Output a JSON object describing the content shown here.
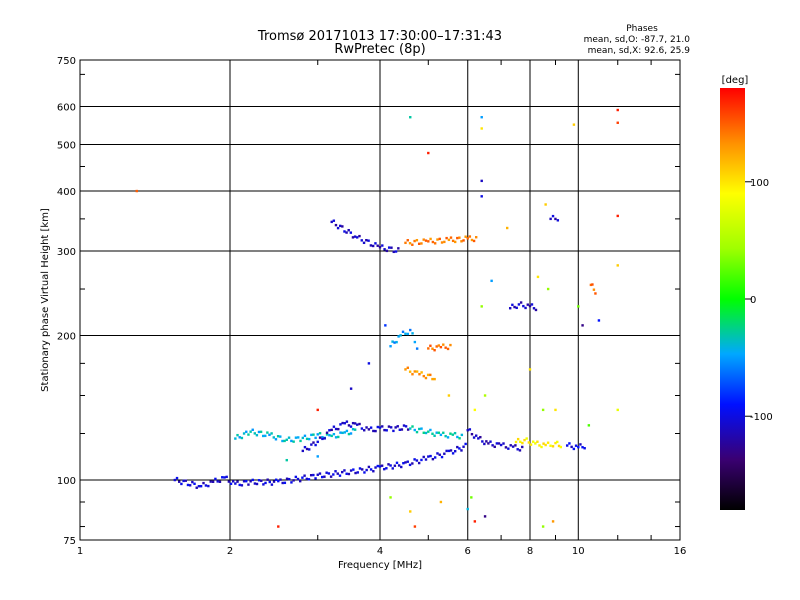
{
  "chart_data": {
    "type": "scatter",
    "title": "Tromsø 20171013 17:30:00–17:31:43",
    "subtitle": "RwPretec (8p)",
    "stats_header": "Phases",
    "stats_line1": "mean, sd,O: -87.7, 21.0",
    "stats_line2": "mean, sd,X: 92.6, 25.9",
    "xlabel": "Frequency [MHz]",
    "ylabel": "Stationary phase Virtual Height [km]",
    "xscale": "log",
    "yscale": "log",
    "xlim": [
      1,
      16
    ],
    "ylim": [
      75,
      750
    ],
    "xticks": [
      1,
      2,
      4,
      6,
      8,
      10,
      16
    ],
    "xtick_labels": [
      "1",
      "2",
      "4",
      "6",
      "8",
      "10",
      "16"
    ],
    "yticks": [
      75,
      100,
      200,
      300,
      400,
      500,
      600,
      750
    ],
    "ytick_labels": [
      "75",
      "100",
      "200",
      "300",
      "400",
      "500",
      "600",
      "750"
    ],
    "grid": true,
    "colorbar": {
      "label": "[deg]",
      "range": [
        -180,
        180
      ],
      "ticks": [
        -100,
        0,
        100
      ],
      "tick_labels": [
        "-100",
        "0",
        "100"
      ]
    },
    "traces": [
      {
        "x": [
          1.55,
          1.75,
          1.85,
          1.95,
          2.05,
          2.2,
          2.5,
          3.0,
          3.5,
          4.0,
          4.5,
          5.0,
          5.5,
          6.0
        ],
        "y": [
          100,
          97,
          99,
          101,
          98,
          99,
          99,
          102,
          104,
          106,
          108,
          111,
          114,
          118
        ],
        "phase": -105
      },
      {
        "x": [
          2.05,
          2.2,
          2.4,
          2.6,
          2.8,
          3.0,
          3.2,
          3.4,
          3.6
        ],
        "y": [
          122,
          126,
          124,
          121,
          122,
          124,
          123,
          125,
          127
        ],
        "phase": -40
      },
      {
        "x": [
          2.8,
          3.0,
          3.2,
          3.4,
          3.6,
          3.8,
          4.0,
          4.3,
          4.6
        ],
        "y": [
          115,
          120,
          127,
          131,
          130,
          127,
          128,
          128,
          129
        ],
        "phase": -110
      },
      {
        "x": [
          4.6,
          5.0,
          5.3,
          5.6,
          5.9
        ],
        "y": [
          128,
          126,
          124,
          124,
          123
        ],
        "phase": -35
      },
      {
        "x": [
          6.0,
          6.3,
          6.6,
          7.0,
          7.4,
          7.8
        ],
        "y": [
          127,
          122,
          119,
          118,
          117,
          116
        ],
        "phase": -112
      },
      {
        "x": [
          7.5,
          7.8,
          8.2,
          8.6,
          9.0,
          9.3
        ],
        "y": [
          120,
          121,
          119,
          118,
          119,
          118
        ],
        "phase": 95
      },
      {
        "x": [
          9.5,
          10.0,
          10.4
        ],
        "y": [
          118,
          117,
          118
        ],
        "phase": -100
      },
      {
        "x": [
          3.2,
          3.6,
          4.0,
          4.4
        ],
        "y": [
          345,
          320,
          305,
          300
        ],
        "phase": -110
      },
      {
        "x": [
          4.5,
          5.0,
          5.5,
          6.0,
          6.3
        ],
        "y": [
          312,
          314,
          316,
          318,
          318
        ],
        "phase": 140
      },
      {
        "x": [
          5.0,
          5.3,
          5.6
        ],
        "y": [
          188,
          189,
          190
        ],
        "phase": 145
      },
      {
        "x": [
          4.2,
          4.4,
          4.6,
          4.8
        ],
        "y": [
          190,
          200,
          205,
          185
        ],
        "phase": -50
      },
      {
        "x": [
          4.5,
          4.8,
          5.2
        ],
        "y": [
          170,
          166,
          163
        ],
        "phase": 130
      },
      {
        "x": [
          7.3,
          7.6,
          8.0,
          8.3
        ],
        "y": [
          228,
          232,
          230,
          228
        ],
        "phase": -110
      },
      {
        "x": [
          8.8,
          9.2
        ],
        "y": [
          350,
          352
        ],
        "phase": -110
      },
      {
        "x": [
          10.6,
          10.9
        ],
        "y": [
          255,
          245
        ],
        "phase": 145
      }
    ],
    "points": [
      {
        "x": 1.3,
        "y": 400,
        "phase": 150
      },
      {
        "x": 4.6,
        "y": 570,
        "phase": -30
      },
      {
        "x": 5.0,
        "y": 480,
        "phase": 170
      },
      {
        "x": 6.4,
        "y": 570,
        "phase": -50
      },
      {
        "x": 6.4,
        "y": 540,
        "phase": 100
      },
      {
        "x": 9.8,
        "y": 550,
        "phase": 110
      },
      {
        "x": 12.0,
        "y": 590,
        "phase": 170
      },
      {
        "x": 12.0,
        "y": 555,
        "phase": 160
      },
      {
        "x": 6.4,
        "y": 420,
        "phase": -110
      },
      {
        "x": 6.4,
        "y": 390,
        "phase": -100
      },
      {
        "x": 12.0,
        "y": 355,
        "phase": 170
      },
      {
        "x": 7.2,
        "y": 335,
        "phase": 120
      },
      {
        "x": 8.6,
        "y": 375,
        "phase": 110
      },
      {
        "x": 12.0,
        "y": 280,
        "phase": 110
      },
      {
        "x": 6.7,
        "y": 260,
        "phase": -50
      },
      {
        "x": 6.4,
        "y": 230,
        "phase": 40
      },
      {
        "x": 8.3,
        "y": 265,
        "phase": 100
      },
      {
        "x": 8.7,
        "y": 250,
        "phase": 40
      },
      {
        "x": 10.0,
        "y": 230,
        "phase": 30
      },
      {
        "x": 10.2,
        "y": 210,
        "phase": -130
      },
      {
        "x": 11.0,
        "y": 215,
        "phase": -90
      },
      {
        "x": 4.1,
        "y": 210,
        "phase": -80
      },
      {
        "x": 3.8,
        "y": 175,
        "phase": -100
      },
      {
        "x": 3.5,
        "y": 155,
        "phase": -110
      },
      {
        "x": 3.0,
        "y": 140,
        "phase": 170
      },
      {
        "x": 5.5,
        "y": 150,
        "phase": 110
      },
      {
        "x": 6.2,
        "y": 140,
        "phase": 90
      },
      {
        "x": 6.5,
        "y": 150,
        "phase": 50
      },
      {
        "x": 8.0,
        "y": 170,
        "phase": 100
      },
      {
        "x": 8.5,
        "y": 140,
        "phase": 40
      },
      {
        "x": 9.0,
        "y": 140,
        "phase": 100
      },
      {
        "x": 10.5,
        "y": 130,
        "phase": 20
      },
      {
        "x": 12.0,
        "y": 140,
        "phase": 80
      },
      {
        "x": 2.5,
        "y": 80,
        "phase": 170
      },
      {
        "x": 4.6,
        "y": 86,
        "phase": 110
      },
      {
        "x": 4.7,
        "y": 80,
        "phase": 160
      },
      {
        "x": 5.3,
        "y": 90,
        "phase": 120
      },
      {
        "x": 6.0,
        "y": 87,
        "phase": -40
      },
      {
        "x": 6.2,
        "y": 82,
        "phase": 170
      },
      {
        "x": 6.5,
        "y": 84,
        "phase": -130
      },
      {
        "x": 8.5,
        "y": 80,
        "phase": 40
      },
      {
        "x": 8.9,
        "y": 82,
        "phase": 130
      },
      {
        "x": 6.1,
        "y": 92,
        "phase": 30
      },
      {
        "x": 4.2,
        "y": 92,
        "phase": 40
      },
      {
        "x": 2.6,
        "y": 110,
        "phase": -30
      },
      {
        "x": 3.0,
        "y": 112,
        "phase": -50
      }
    ]
  }
}
